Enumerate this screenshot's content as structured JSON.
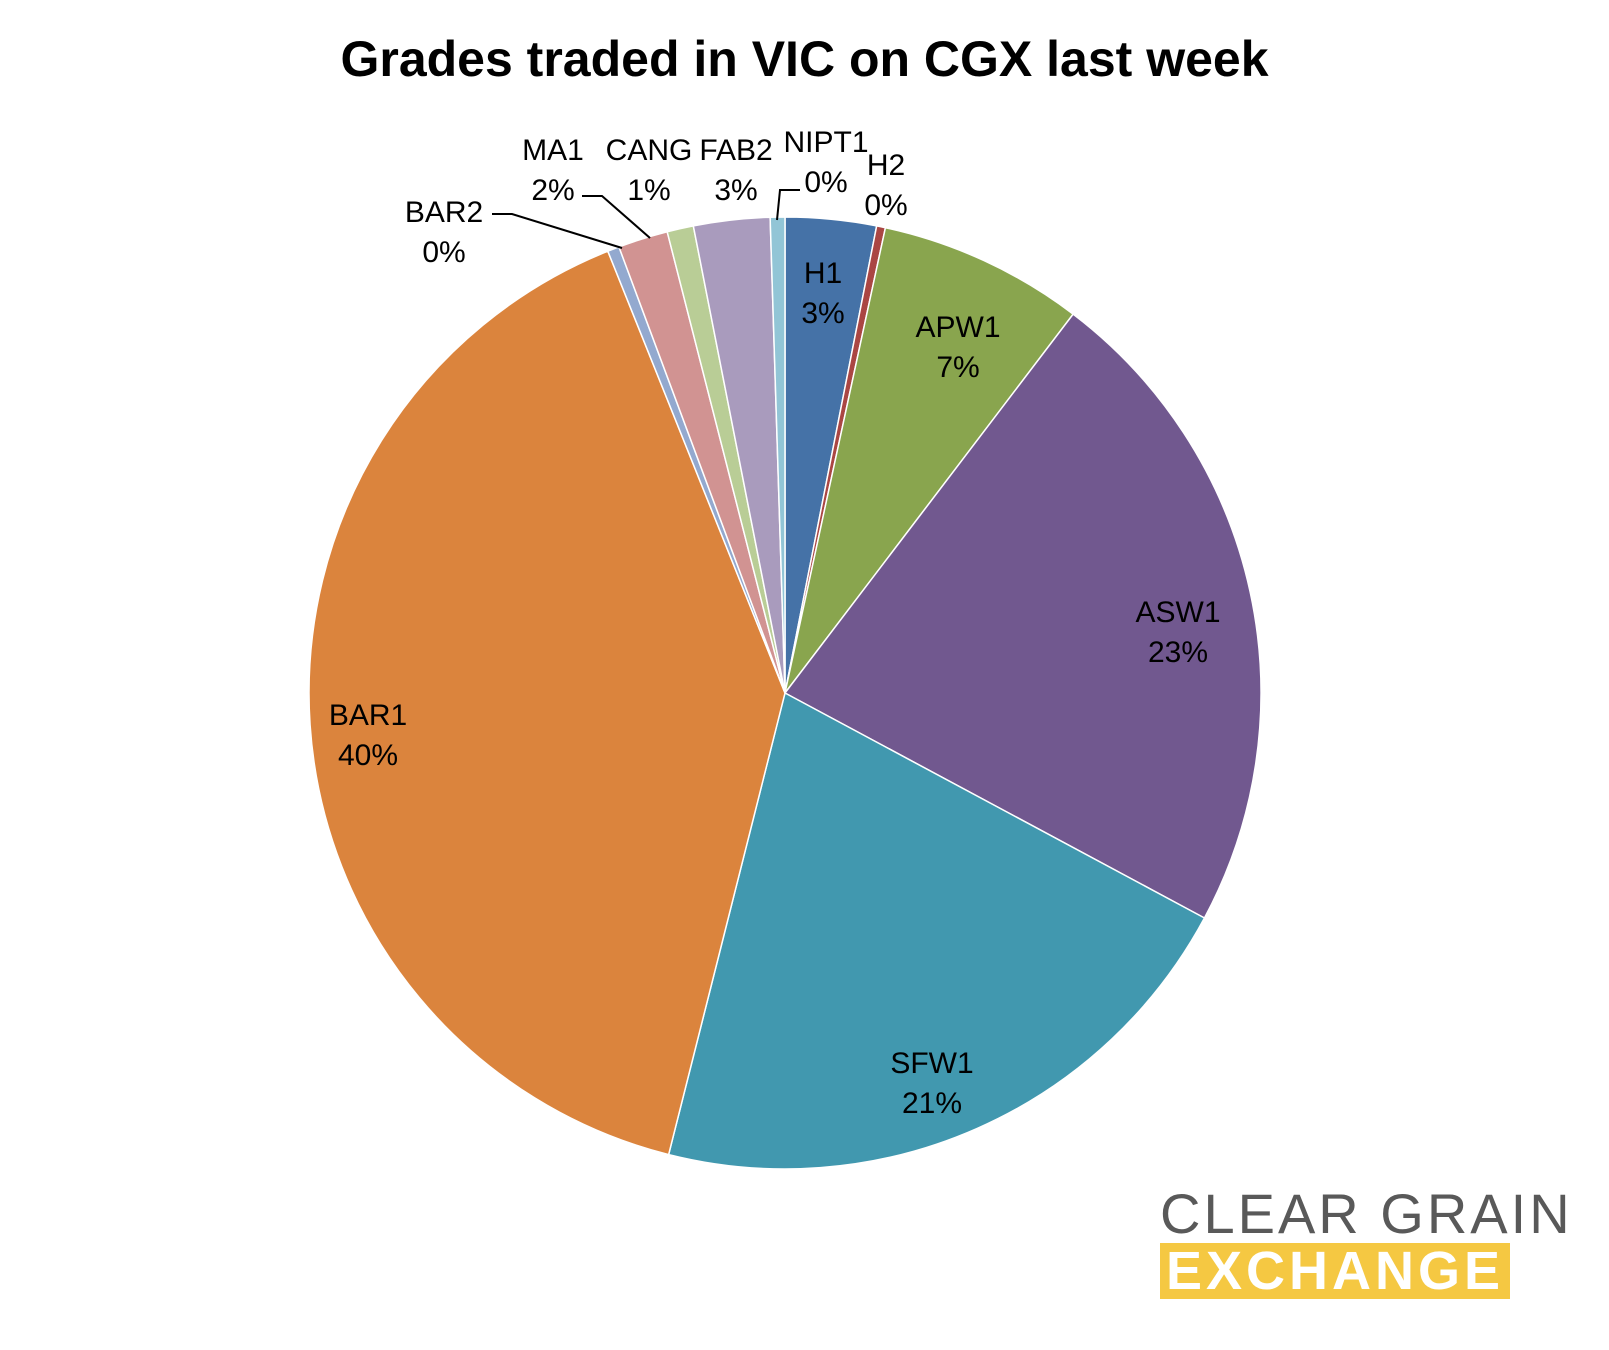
{
  "chart_data": {
    "type": "pie",
    "title": "Grades traded in VIC on CGX last week",
    "start_angle_deg": 0,
    "direction": "clockwise",
    "slices": [
      {
        "label": "H1",
        "value": 3.1,
        "percent_label": "3%",
        "color": "#4572a7"
      },
      {
        "label": "H2",
        "value": 0.3,
        "percent_label": "0%",
        "color": "#aa4643"
      },
      {
        "label": "APW1",
        "value": 7.0,
        "percent_label": "7%",
        "color": "#89a54e"
      },
      {
        "label": "ASW1",
        "value": 22.6,
        "percent_label": "23%",
        "color": "#71588f"
      },
      {
        "label": "SFW1",
        "value": 21.2,
        "percent_label": "21%",
        "color": "#4198af"
      },
      {
        "label": "BAR1",
        "value": 40.2,
        "percent_label": "40%",
        "color": "#db843d"
      },
      {
        "label": "BAR2",
        "value": 0.4,
        "percent_label": "0%",
        "color": "#93a9cf"
      },
      {
        "label": "MA1",
        "value": 1.7,
        "percent_label": "2%",
        "color": "#d19392"
      },
      {
        "label": "CANG",
        "value": 0.9,
        "percent_label": "1%",
        "color": "#b9cd96"
      },
      {
        "label": "FAB2",
        "value": 2.6,
        "percent_label": "3%",
        "color": "#a99bbd"
      },
      {
        "label": "NIPT1",
        "value": 0.5,
        "percent_label": "0%",
        "color": "#92c5d6"
      }
    ]
  },
  "logo": {
    "line1": "CLEAR GRAIN",
    "line2": "EXCHANGE"
  }
}
